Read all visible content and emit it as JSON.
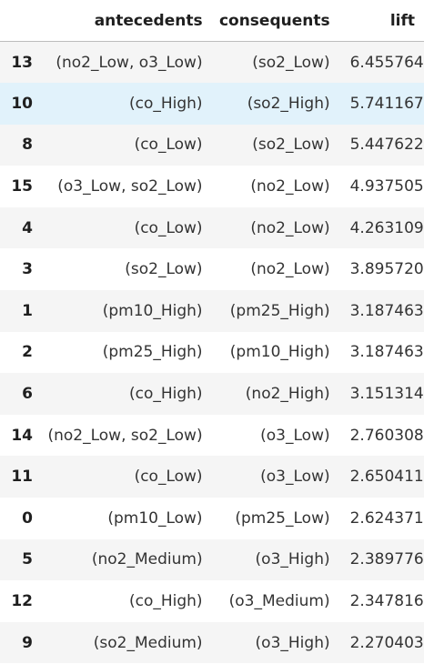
{
  "table": {
    "columns": [
      "antecedents",
      "consequents",
      "lift"
    ],
    "hovered_row_index": 1,
    "rows": [
      {
        "index": "13",
        "antecedents": "(no2_Low, o3_Low)",
        "consequents": "(so2_Low)",
        "lift": "6.455764"
      },
      {
        "index": "10",
        "antecedents": "(co_High)",
        "consequents": "(so2_High)",
        "lift": "5.741167"
      },
      {
        "index": "8",
        "antecedents": "(co_Low)",
        "consequents": "(so2_Low)",
        "lift": "5.447622"
      },
      {
        "index": "15",
        "antecedents": "(o3_Low, so2_Low)",
        "consequents": "(no2_Low)",
        "lift": "4.937505"
      },
      {
        "index": "4",
        "antecedents": "(co_Low)",
        "consequents": "(no2_Low)",
        "lift": "4.263109"
      },
      {
        "index": "3",
        "antecedents": "(so2_Low)",
        "consequents": "(no2_Low)",
        "lift": "3.895720"
      },
      {
        "index": "1",
        "antecedents": "(pm10_High)",
        "consequents": "(pm25_High)",
        "lift": "3.187463"
      },
      {
        "index": "2",
        "antecedents": "(pm25_High)",
        "consequents": "(pm10_High)",
        "lift": "3.187463"
      },
      {
        "index": "6",
        "antecedents": "(co_High)",
        "consequents": "(no2_High)",
        "lift": "3.151314"
      },
      {
        "index": "14",
        "antecedents": "(no2_Low, so2_Low)",
        "consequents": "(o3_Low)",
        "lift": "2.760308"
      },
      {
        "index": "11",
        "antecedents": "(co_Low)",
        "consequents": "(o3_Low)",
        "lift": "2.650411"
      },
      {
        "index": "0",
        "antecedents": "(pm10_Low)",
        "consequents": "(pm25_Low)",
        "lift": "2.624371"
      },
      {
        "index": "5",
        "antecedents": "(no2_Medium)",
        "consequents": "(o3_High)",
        "lift": "2.389776"
      },
      {
        "index": "12",
        "antecedents": "(co_High)",
        "consequents": "(o3_Medium)",
        "lift": "2.347816"
      },
      {
        "index": "9",
        "antecedents": "(so2_Medium)",
        "consequents": "(o3_High)",
        "lift": "2.270403"
      }
    ]
  }
}
